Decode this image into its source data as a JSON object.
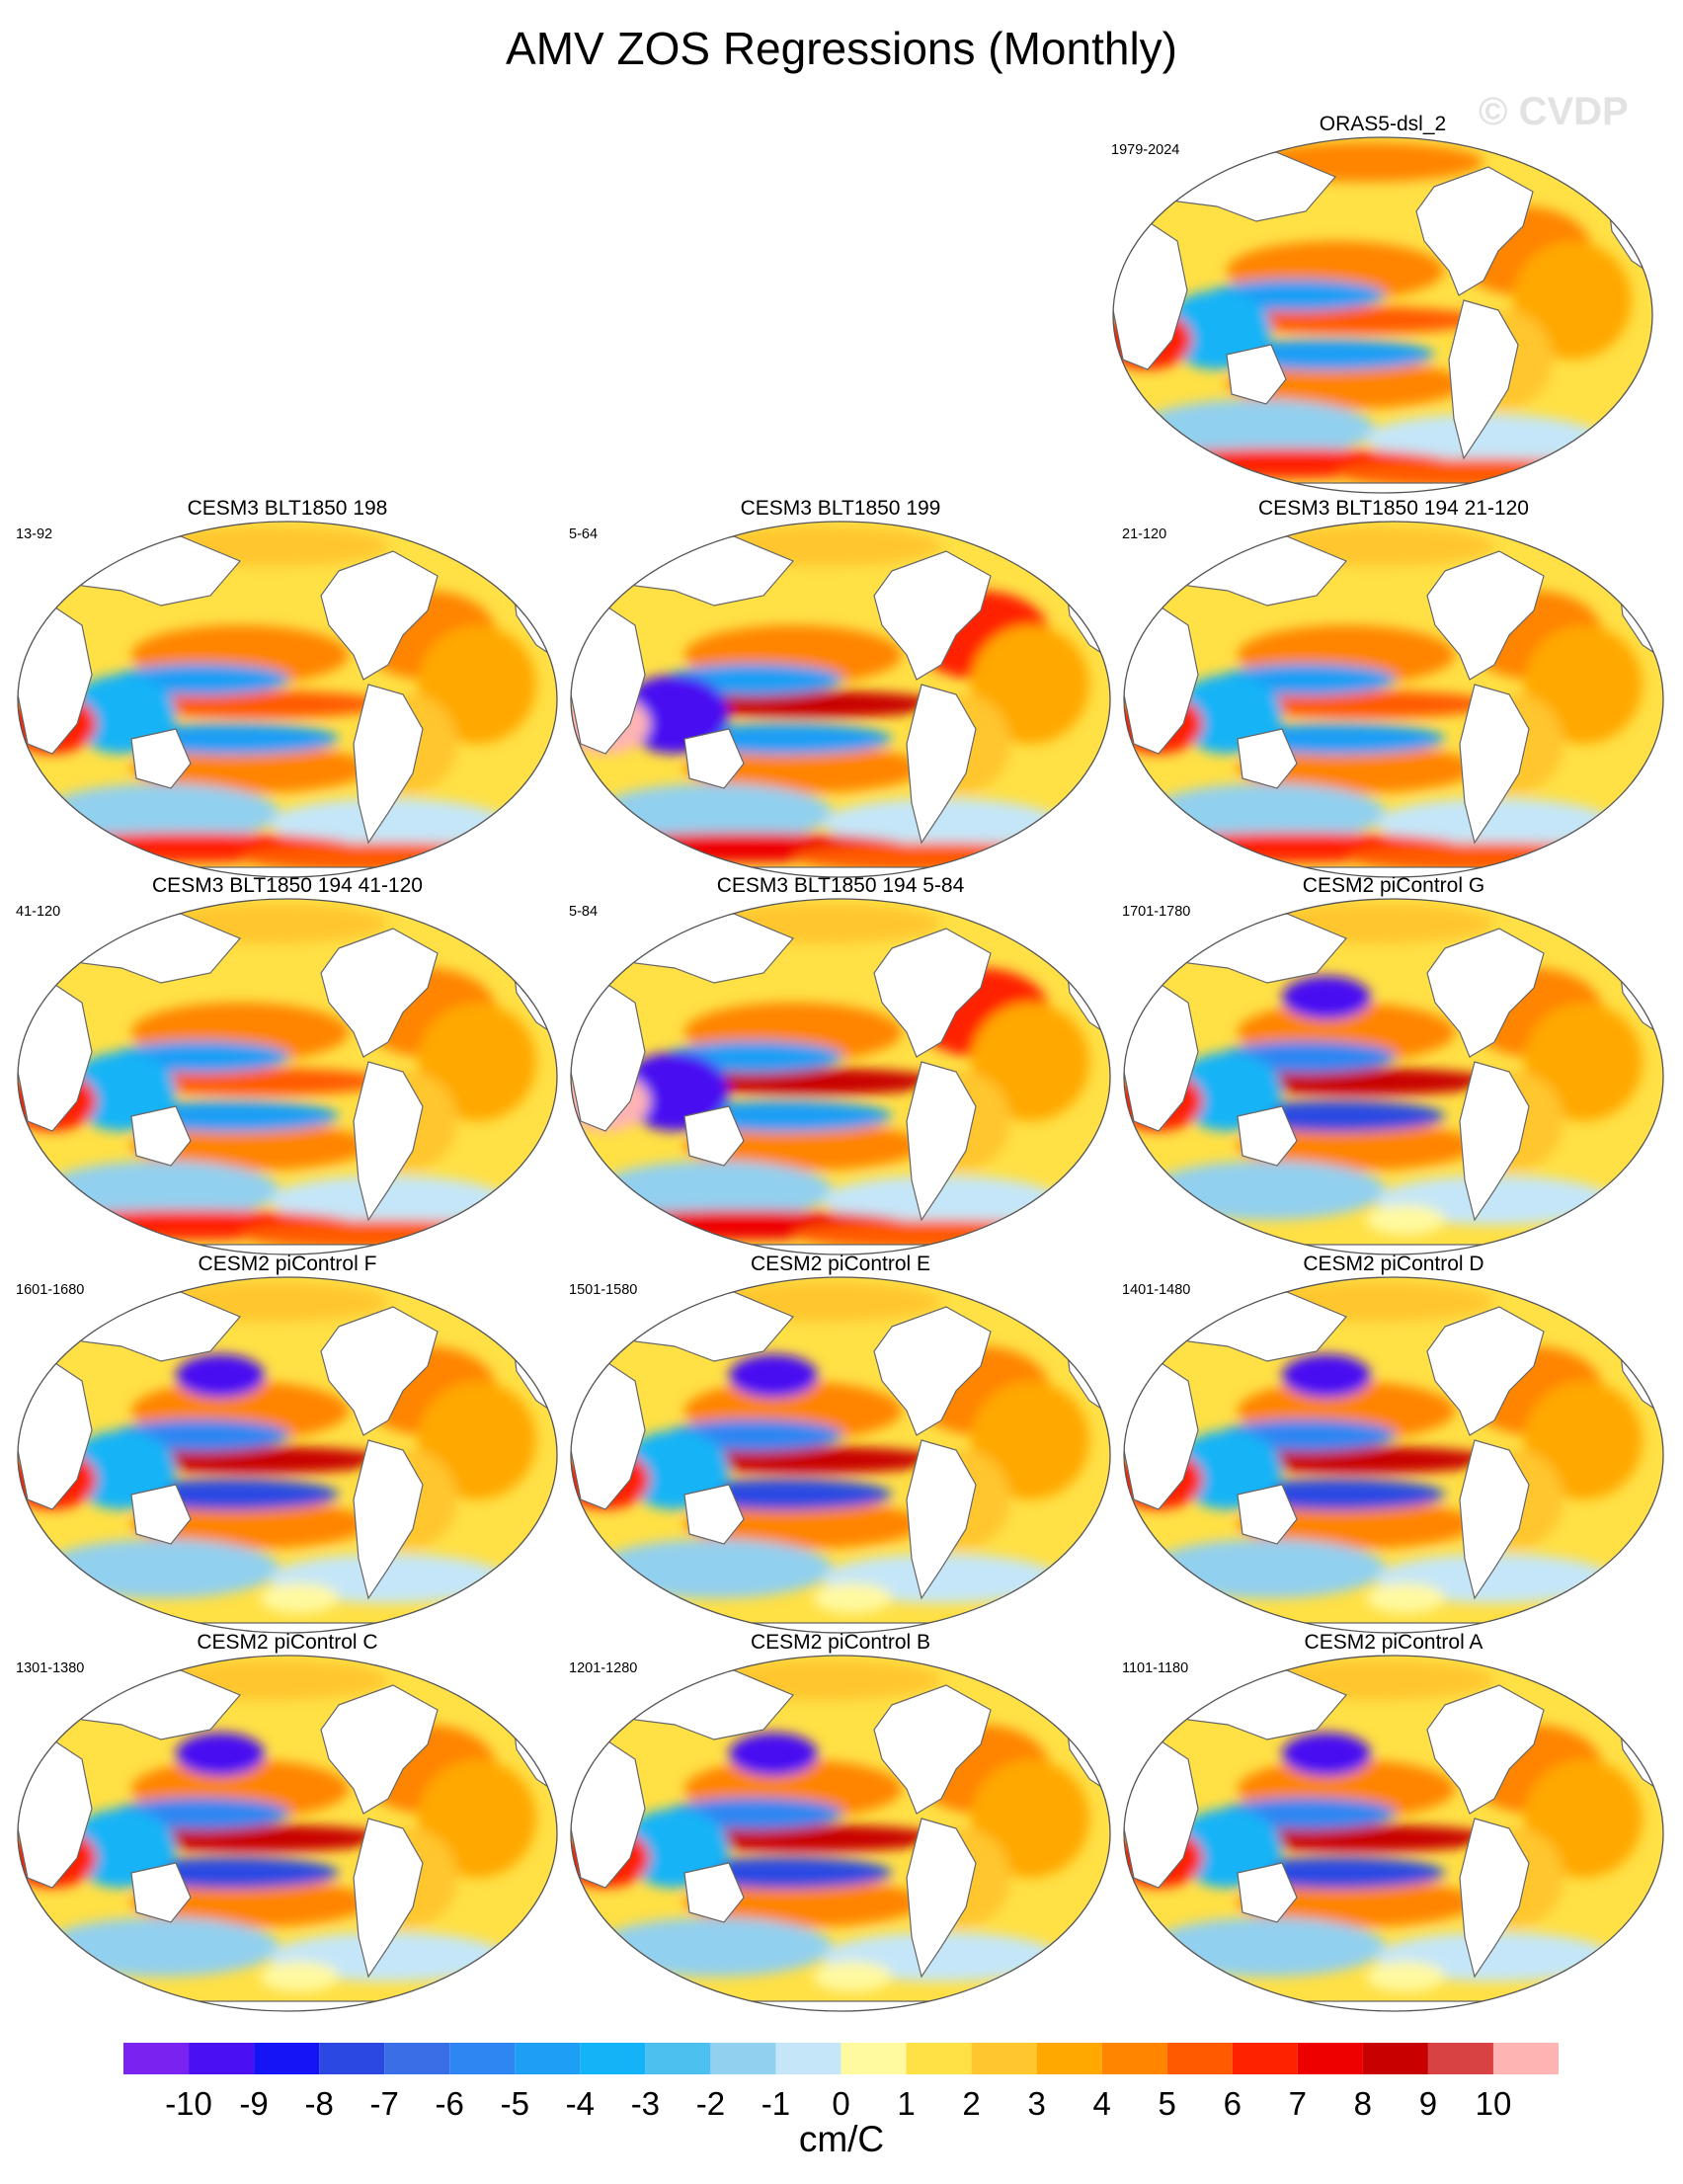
{
  "title": "AMV ZOS Regressions (Monthly)",
  "watermark": "© CVDP",
  "panels": [
    {
      "title": "ORAS5-dsl_2",
      "period": "1979-2024",
      "style": "obs"
    },
    {
      "title": "CESM3 BLT1850 198",
      "period": "13-92",
      "style": "cesm3"
    },
    {
      "title": "CESM3 BLT1850 199",
      "period": "5-64",
      "style": "cesm3strong"
    },
    {
      "title": "CESM3 BLT1850 194 21-120",
      "period": "21-120",
      "style": "cesm3"
    },
    {
      "title": "CESM3 BLT1850 194 41-120",
      "period": "41-120",
      "style": "cesm3"
    },
    {
      "title": "CESM3 BLT1850 194 5-84",
      "period": "5-84",
      "style": "cesm3strong"
    },
    {
      "title": "CESM2 piControl G",
      "period": "1701-1780",
      "style": "cesm2"
    },
    {
      "title": "CESM2 piControl F",
      "period": "1601-1680",
      "style": "cesm2"
    },
    {
      "title": "CESM2 piControl E",
      "period": "1501-1580",
      "style": "cesm2"
    },
    {
      "title": "CESM2 piControl D",
      "period": "1401-1480",
      "style": "cesm2"
    },
    {
      "title": "CESM2 piControl C",
      "period": "1301-1380",
      "style": "cesm2"
    },
    {
      "title": "CESM2 piControl B",
      "period": "1201-1280",
      "style": "cesm2"
    },
    {
      "title": "CESM2 piControl A",
      "period": "1101-1180",
      "style": "cesm2"
    }
  ],
  "colorbar": {
    "unit": "cm/C",
    "labels": [
      "-10",
      "-9",
      "-8",
      "-7",
      "-6",
      "-5",
      "-4",
      "-3",
      "-2",
      "-1",
      "0",
      "1",
      "2",
      "3",
      "4",
      "5",
      "6",
      "7",
      "8",
      "9",
      "10"
    ],
    "colors": [
      "#7a22f0",
      "#4a10f2",
      "#1414f5",
      "#2c48e2",
      "#3a6ee6",
      "#2d86f2",
      "#1e9ef5",
      "#12b4f7",
      "#4cc0ee",
      "#92d0ef",
      "#c4e6f8",
      "#fff9a0",
      "#ffe045",
      "#ffc62e",
      "#ffa800",
      "#ff8400",
      "#ff5a00",
      "#ff2200",
      "#ee0000",
      "#c80000",
      "#d84242",
      "#ffb4b4"
    ]
  }
}
